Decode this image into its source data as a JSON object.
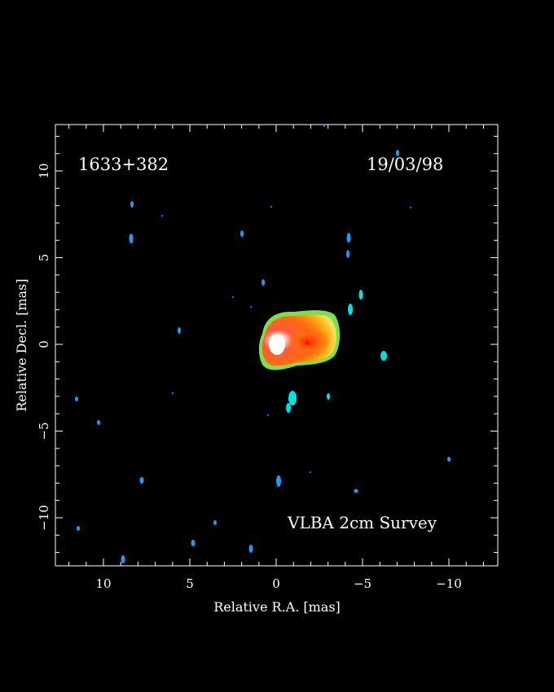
{
  "source_name": "1633+382",
  "epoch": "19/03/98",
  "survey": "VLBA 2cm Survey",
  "xlabel": "Relative R.A. [mas]",
  "ylabel": "Relative Decl. [mas]",
  "x_ticks": [
    "10",
    "5",
    "0",
    "−5",
    "−10"
  ],
  "y_ticks": [
    "10",
    "5",
    "0",
    "−5",
    "−10"
  ],
  "colors": {
    "background": "#000000",
    "frame": "#ffffff",
    "noise_blue": "#1f9bff",
    "noise_cyan": "#00e0e8",
    "core_peak": "#ffffff",
    "jet_red": "#ff2a00",
    "halo_green": "#7de04a"
  }
}
